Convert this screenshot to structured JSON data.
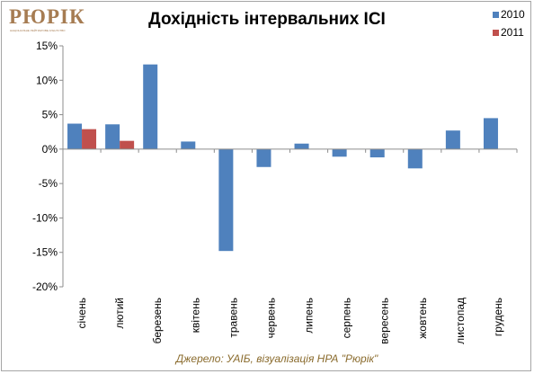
{
  "logo": {
    "text": "РЮРІК",
    "subtitle": "НАЦІОНАЛЬНЕ РЕЙТИНГОВЕ АГЕНТСТВО"
  },
  "source": "Джерело: УАІБ, візуалізація НРА \"Рюрік\"",
  "colors": {
    "s2010": "#4f81bd",
    "s2011": "#c0504d",
    "gridline": "#8c8c8c"
  },
  "chart_data": {
    "type": "bar",
    "title": "Дохідність інтервальних ІСІ",
    "xlabel": "",
    "ylabel": "",
    "ylim": [
      -20,
      15
    ],
    "yticks": [
      15,
      10,
      5,
      0,
      -5,
      -10,
      -15,
      -20
    ],
    "ytick_labels": [
      "15%",
      "10%",
      "5%",
      "0%",
      "-5%",
      "-10%",
      "-15%",
      "-20%"
    ],
    "grid": false,
    "legend_position": "top-right",
    "categories": [
      "січень",
      "лютий",
      "березень",
      "квітень",
      "травень",
      "червень",
      "липень",
      "серпень",
      "вересень",
      "жовтень",
      "листопад",
      "грудень"
    ],
    "series": [
      {
        "name": "2010",
        "values": [
          3.7,
          3.6,
          12.3,
          1.1,
          -14.8,
          -2.6,
          0.8,
          -1.1,
          -1.2,
          -2.8,
          2.7,
          4.5
        ]
      },
      {
        "name": "2011",
        "values": [
          2.9,
          1.2,
          null,
          null,
          null,
          null,
          null,
          null,
          null,
          null,
          null,
          null
        ]
      }
    ]
  }
}
